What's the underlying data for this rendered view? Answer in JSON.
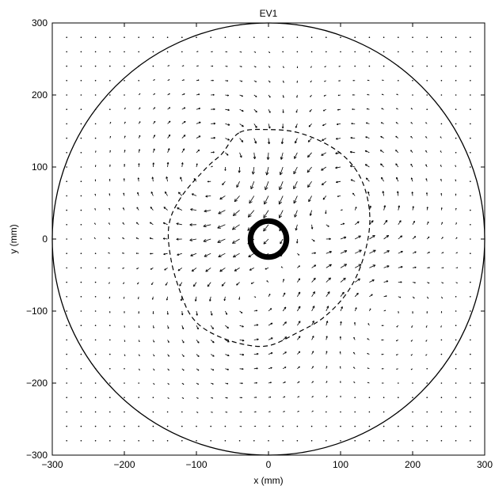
{
  "chart_data": {
    "type": "quiver",
    "title": "EV1",
    "xlabel": "x (mm)",
    "ylabel": "y (mm)",
    "xlim": [
      -300,
      300
    ],
    "ylim": [
      -300,
      300
    ],
    "xticks": [
      -300,
      -200,
      -100,
      0,
      100,
      200,
      300
    ],
    "yticks": [
      -300,
      -200,
      -100,
      0,
      100,
      200,
      300
    ],
    "xtick_labels": [
      "−300",
      "−200",
      "−100",
      "0",
      "100",
      "200",
      "300"
    ],
    "ytick_labels": [
      "−300",
      "−200",
      "−100",
      "0",
      "100",
      "200",
      "300"
    ],
    "grid": false,
    "box": true,
    "vector_grid": {
      "spacing_mm": 20,
      "extent_mm": 280,
      "vortex_centers_mm": [
        [
          -70,
          90
        ],
        [
          100,
          40
        ],
        [
          -30,
          -80
        ],
        [
          140,
          -70
        ]
      ],
      "field": "swirl pattern: clockwise roll on upper-left, counter-clockwise roll on right, weak flow near the outer wall"
    },
    "overlays": [
      {
        "name": "outer-boundary",
        "shape": "circle",
        "center": [
          0,
          0
        ],
        "radius": 300,
        "style": "solid"
      },
      {
        "name": "inner-cylinder",
        "shape": "circle",
        "center": [
          0,
          0
        ],
        "radius": 25,
        "style": "thick-solid"
      },
      {
        "name": "dashed-contour",
        "shape": "closed-curve",
        "style": "dashed",
        "points": [
          [
            -40,
            148
          ],
          [
            0,
            152
          ],
          [
            40,
            148
          ],
          [
            80,
            132
          ],
          [
            110,
            110
          ],
          [
            130,
            80
          ],
          [
            140,
            40
          ],
          [
            138,
            0
          ],
          [
            125,
            -45
          ],
          [
            105,
            -80
          ],
          [
            75,
            -110
          ],
          [
            40,
            -130
          ],
          [
            0,
            -148
          ],
          [
            -40,
            -145
          ],
          [
            -80,
            -130
          ],
          [
            -105,
            -110
          ],
          [
            -120,
            -80
          ],
          [
            -135,
            -30
          ],
          [
            -138,
            20
          ],
          [
            -120,
            60
          ],
          [
            -85,
            100
          ],
          [
            -65,
            118
          ]
        ]
      }
    ]
  }
}
